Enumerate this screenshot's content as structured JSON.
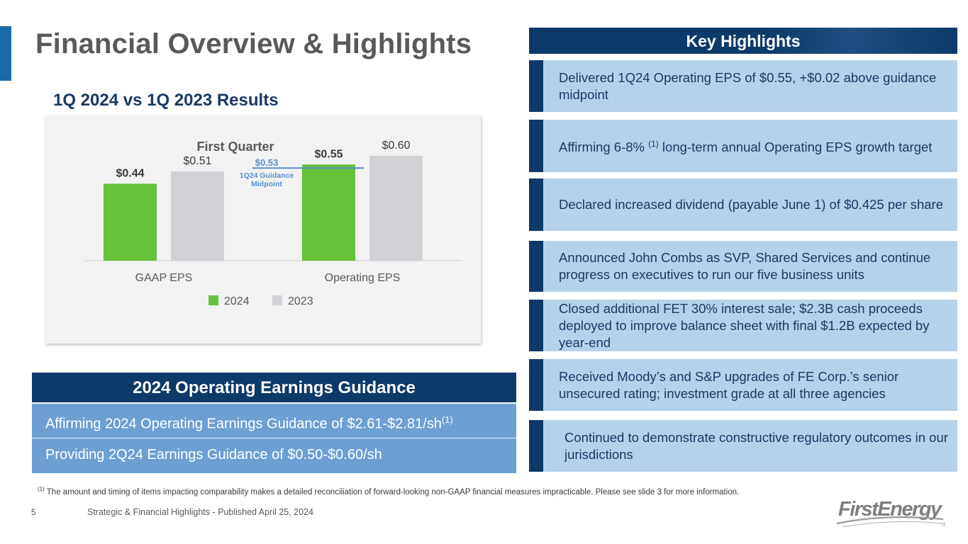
{
  "page": {
    "title": "Financial Overview & Highlights",
    "subtitle": "1Q 2024 vs 1Q 2023 Results",
    "page_number": "5",
    "footer": "Strategic & Financial Highlights - Published April 25, 2024",
    "footnote_marker": "(1)",
    "footnote": "The amount and timing of items impacting comparability makes a detailed reconciliation of forward-looking non-GAAP financial measures impracticable. Please see slide 3 for more information.",
    "logo_text": "FirstEnergy",
    "logo_mark": "®"
  },
  "colors": {
    "navy": "#0d3a68",
    "accent_blue": "#1b6aa8",
    "light_blue": "#b5d2ec",
    "mid_blue": "#6d9fd4",
    "green_2024": "#66c23a",
    "gray_2023": "#d0d2d6",
    "guidance_line": "#5b8fc9"
  },
  "chart_data": {
    "type": "bar",
    "title": "First Quarter",
    "categories": [
      "GAAP EPS",
      "Operating EPS"
    ],
    "series": [
      {
        "name": "2024",
        "values": [
          0.44,
          0.55
        ],
        "labels": [
          "$0.44",
          "$0.55"
        ],
        "color": "#66c23a"
      },
      {
        "name": "2023",
        "values": [
          0.51,
          0.6
        ],
        "labels": [
          "$0.51",
          "$0.60"
        ],
        "color": "#d0d2d6"
      }
    ],
    "ylim": [
      0,
      0.62
    ],
    "xlabel": "",
    "ylabel": "",
    "grid": false,
    "legend": "bottom",
    "annotations": [
      {
        "category": "Operating EPS",
        "value": 0.53,
        "label": "$0.53",
        "note_line1": "1Q24 Guidance",
        "note_line2": "Midpoint"
      }
    ]
  },
  "guidance": {
    "header": "2024 Operating Earnings Guidance",
    "rows": [
      {
        "text": "Affirming 2024 Operating Earnings Guidance of $2.61-$2.81/sh",
        "sup": "(1)"
      },
      {
        "text": "Providing 2Q24 Earnings Guidance of $0.50-$0.60/sh",
        "sup": ""
      }
    ]
  },
  "key_highlights": {
    "header": "Key Highlights",
    "items": [
      {
        "text": "Delivered 1Q24 Operating EPS of $0.55, +$0.02 above guidance midpoint"
      },
      {
        "text_before": "Affirming 6-8%",
        "sup": "(1)",
        "text_after": " long-term annual Operating EPS growth target"
      },
      {
        "text": "Declared increased dividend (payable June 1) of $0.425 per share"
      },
      {
        "text": "Announced John Combs as SVP, Shared Services and continue progress on executives to run our five business units"
      },
      {
        "text": "Closed additional FET 30% interest sale; $2.3B cash proceeds deployed to improve balance sheet with final $1.2B expected by year-end"
      },
      {
        "text": "Received Moody’s and S&P upgrades of FE Corp.’s senior unsecured rating; investment grade at all three agencies"
      },
      {
        "text": "Continued to demonstrate constructive regulatory outcomes in our jurisdictions"
      }
    ]
  }
}
